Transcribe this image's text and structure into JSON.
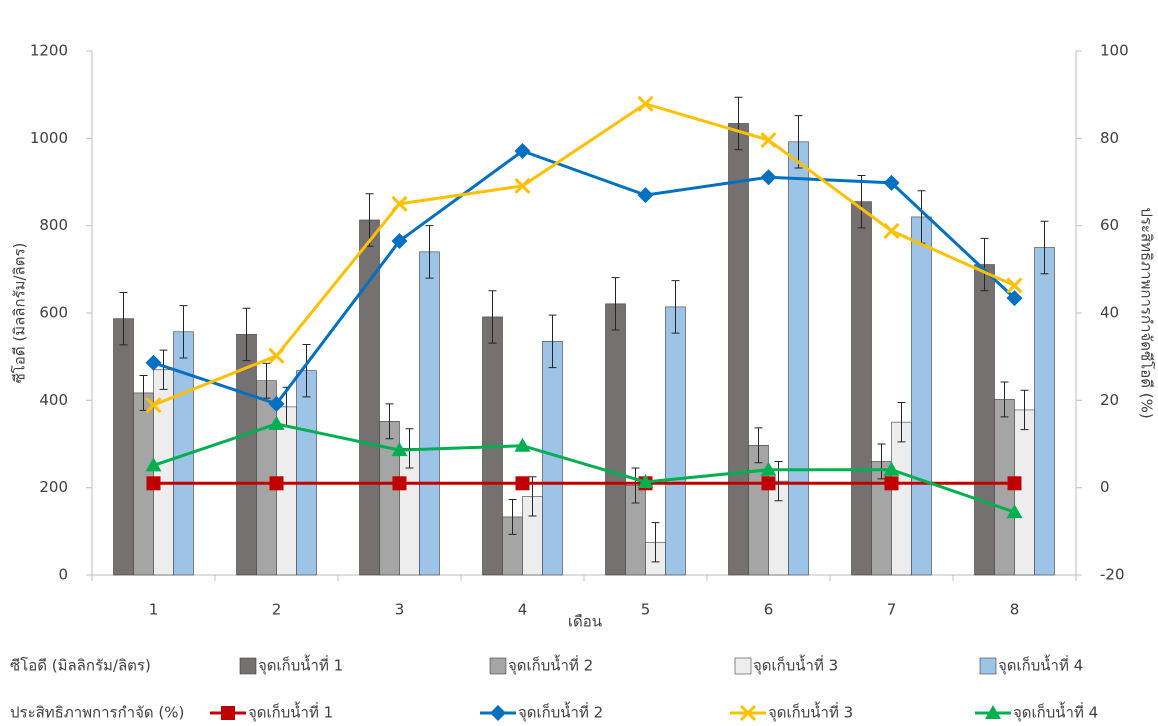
{
  "chart_data": {
    "type": "bar",
    "xlabel": "เดือน",
    "ylabel": "ซีโอดี (มิลลิกรัม/ลิตร)",
    "y2label": "ประสิทธิภาพการกำจัดซีโอดี (%)",
    "legend_groups": [
      "ซีโอดี (มิลลิกรัม/ลิตร)",
      "ประสิทธิภาพการกำจัด (%)"
    ],
    "categories": [
      "1",
      "2",
      "3",
      "4",
      "5",
      "6",
      "7",
      "8"
    ],
    "ylim": [
      0,
      1200
    ],
    "yticks": [
      0,
      200,
      400,
      600,
      800,
      1000,
      1200
    ],
    "y2lim": [
      -20,
      100
    ],
    "y2ticks": [
      -20,
      0,
      20,
      40,
      60,
      80,
      100
    ],
    "series": [
      {
        "name": "จุดเก็บน้ำที่ 1",
        "type": "bar",
        "color": "#767171",
        "values": [
          587,
          551,
          813,
          591,
          621,
          1034,
          855,
          711
        ],
        "errors": [
          60,
          60,
          60,
          60,
          60,
          60,
          60,
          60
        ]
      },
      {
        "name": "จุดเก็บน้ำที่ 2",
        "type": "bar",
        "color": "#a5a5a5",
        "values": [
          417,
          445,
          352,
          133,
          205,
          297,
          260,
          402
        ],
        "errors": [
          40,
          40,
          40,
          40,
          40,
          40,
          40,
          40
        ]
      },
      {
        "name": "จุดเก็บน้ำที่ 3",
        "type": "bar",
        "color": "#ededed",
        "values": [
          470,
          385,
          290,
          180,
          75,
          215,
          350,
          378
        ],
        "errors": [
          45,
          45,
          45,
          45,
          45,
          45,
          45,
          45
        ]
      },
      {
        "name": "จุดเก็บน้ำที่ 4",
        "type": "bar",
        "color": "#9dc3e6",
        "values": [
          557,
          468,
          740,
          535,
          614,
          992,
          820,
          750
        ],
        "errors": [
          60,
          60,
          60,
          60,
          60,
          60,
          60,
          60
        ]
      },
      {
        "name": "จุดเก็บน้ำที่ 1",
        "type": "line",
        "axis": "y2",
        "marker": "square",
        "color": "#c00000",
        "values": [
          1,
          1,
          1,
          1,
          1,
          1,
          1,
          1
        ]
      },
      {
        "name": "จุดเก็บน้ำที่ 2",
        "type": "line",
        "axis": "y2",
        "marker": "diamond",
        "color": "#0070c0",
        "values": [
          28.6,
          19.2,
          56.5,
          77.1,
          67,
          71.1,
          69.8,
          43.4
        ]
      },
      {
        "name": "จุดเก็บน้ำที่ 3",
        "type": "line",
        "axis": "y2",
        "marker": "x",
        "color": "#ffc000",
        "values": [
          18.9,
          30.2,
          65,
          69.1,
          87.9,
          79.6,
          58.8,
          46.3
        ]
      },
      {
        "name": "จุดเก็บน้ำที่ 4",
        "type": "line",
        "axis": "y2",
        "marker": "triangle",
        "color": "#00b050",
        "values": [
          5.1,
          14.6,
          8.6,
          9.6,
          1.3,
          4.1,
          4.1,
          -5.6
        ]
      }
    ]
  }
}
